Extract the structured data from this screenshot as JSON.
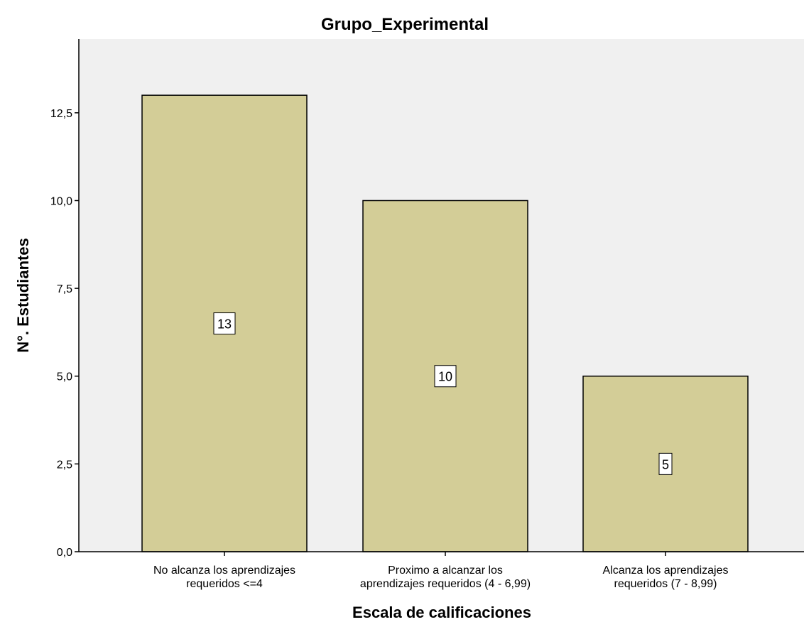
{
  "chart_data": {
    "type": "bar",
    "title": "Grupo_Experimental",
    "xlabel": "Escala de calificaciones",
    "ylabel": "N°. Estudiantes",
    "categories": [
      [
        "No alcanza los aprendizajes",
        "requeridos <=4"
      ],
      [
        "Proximo a alcanzar los",
        "aprendizajes requeridos (4 - 6,99)"
      ],
      [
        "Alcanza los aprendizajes",
        "requeridos (7 - 8,99)"
      ]
    ],
    "values": [
      13,
      10,
      5
    ],
    "data_labels": [
      "13",
      "10",
      "5"
    ],
    "yticks": [
      0,
      2.5,
      5,
      7.5,
      10,
      12.5
    ],
    "ytick_labels": [
      "0,0",
      "2,5",
      "5,0",
      "7,5",
      "10,0",
      "12,5"
    ],
    "ylim": [
      0,
      14.6
    ],
    "grid": false,
    "colors": {
      "bar_fill": "#d3cd97",
      "bar_stroke": "#000000",
      "plot_bg": "#f0f0f0",
      "label_bg": "#ffffff"
    }
  }
}
